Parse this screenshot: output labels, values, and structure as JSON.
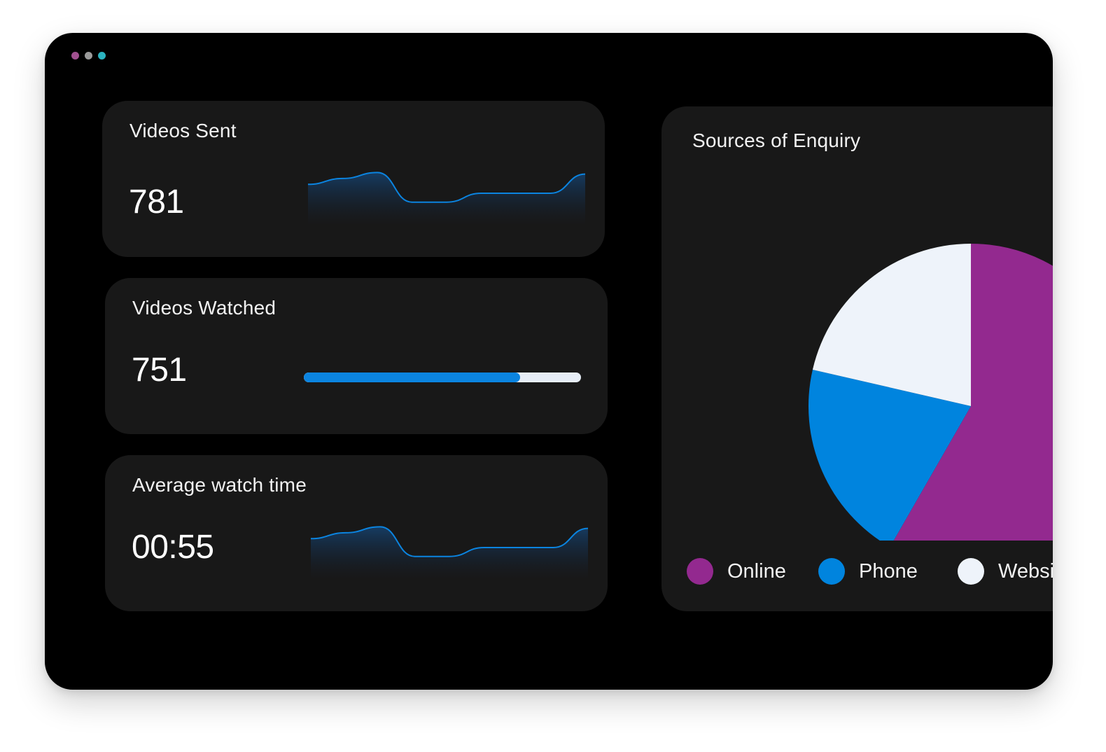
{
  "window": {
    "controls": [
      {
        "color": "#a0508f"
      },
      {
        "color": "#9a9a9a"
      },
      {
        "color": "#2bb3c0"
      }
    ]
  },
  "cards": {
    "videos_sent": {
      "title": "Videos Sent",
      "value": "781"
    },
    "videos_watched": {
      "title": "Videos Watched",
      "value": "751",
      "progress_fraction": 0.78
    },
    "average_watch_time": {
      "title": "Average watch time",
      "value": "00:55"
    }
  },
  "colors": {
    "card_bg": "#181818",
    "accent_blue": "#0b84e0",
    "progress_track": "#e6edf6",
    "online": "#93298f",
    "phone": "#0084de",
    "website": "#eef3fa"
  },
  "chart_data": [
    {
      "type": "area",
      "card": "videos_sent",
      "title": "",
      "x": [
        0,
        1,
        2,
        3,
        4,
        5,
        6,
        7,
        8
      ],
      "values": [
        0.6,
        0.8,
        1.0,
        0.0,
        0.0,
        0.3,
        0.3,
        0.3,
        0.95
      ],
      "ylim": [
        -0.6,
        1.2
      ],
      "grid": false
    },
    {
      "type": "area",
      "card": "average_watch_time",
      "title": "",
      "x": [
        0,
        1,
        2,
        3,
        4,
        5,
        6,
        7,
        8
      ],
      "values": [
        0.6,
        0.8,
        1.0,
        0.0,
        0.0,
        0.3,
        0.3,
        0.3,
        0.95
      ],
      "ylim": [
        -0.6,
        1.2
      ],
      "grid": false
    },
    {
      "type": "pie",
      "title": "Sources of Enquiry",
      "categories": [
        "Online",
        "Phone",
        "Website"
      ],
      "values": [
        58.3,
        20.3,
        21.4
      ],
      "colors": [
        "#93298f",
        "#0084de",
        "#eef3fa"
      ],
      "legend": "bottom"
    }
  ],
  "enquiry": {
    "title": "Sources of Enquiry",
    "legend": [
      {
        "label": "Online",
        "color": "#93298f"
      },
      {
        "label": "Phone",
        "color": "#0084de"
      },
      {
        "label": "Website",
        "color": "#eef3fa"
      }
    ]
  }
}
